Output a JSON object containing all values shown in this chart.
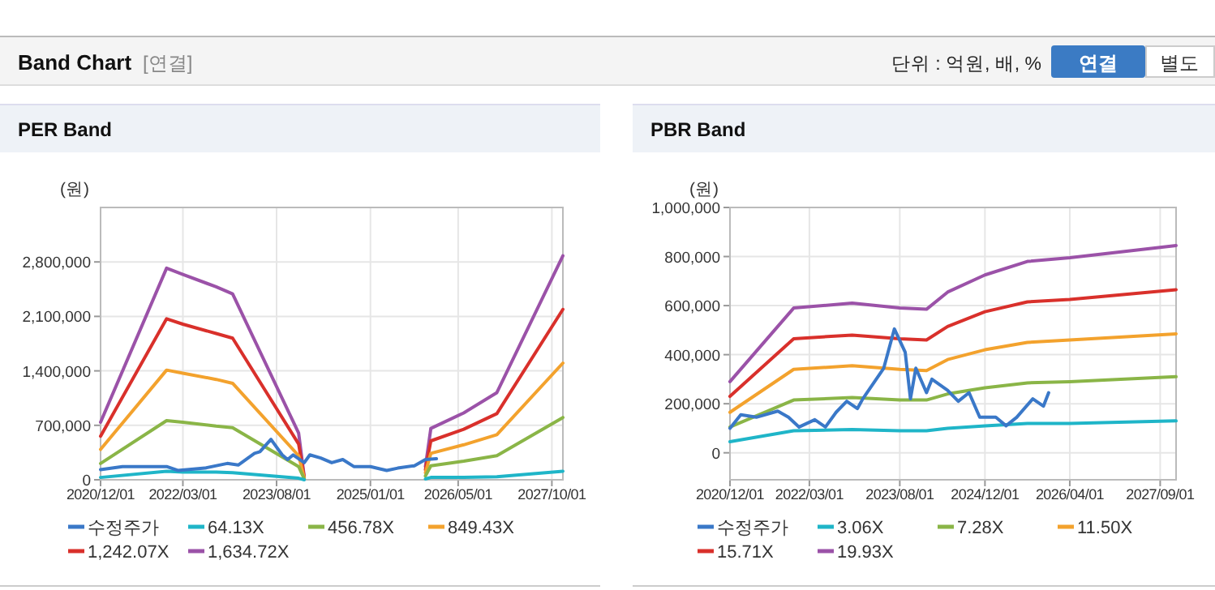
{
  "chart_data": [
    {
      "type": "other",
      "title": "Band Chart",
      "annotations": [
        "[연결]",
        "단위 : 억원, 배, %",
        "연결",
        "별도"
      ]
    },
    {
      "type": "line",
      "title": "PER Band",
      "ylabel": "(원)",
      "grid": true,
      "legend": "bottom",
      "marker": "none",
      "line_style": "solid",
      "xlim": [
        "2020-12-01",
        "2027-12-01"
      ],
      "xticks": [
        {
          "value": "2020-12-01",
          "label": "2020/12/01"
        },
        {
          "value": "2022-03-01",
          "label": "2022/03/01"
        },
        {
          "value": "2023-08-01",
          "label": "2023/08/01"
        },
        {
          "value": "2025-01-01",
          "label": "2025/01/01"
        },
        {
          "value": "2026-05-01",
          "label": "2026/05/01"
        },
        {
          "value": "2027-10-01",
          "label": "2027/10/01"
        }
      ],
      "ylim": [
        0,
        3500000
      ],
      "yticks": [
        {
          "value": 0,
          "label": "0"
        },
        {
          "value": 700000,
          "label": "700,000"
        },
        {
          "value": 1400000,
          "label": "1,400,000"
        },
        {
          "value": 2100000,
          "label": "2,100,000"
        },
        {
          "value": 2800000,
          "label": "2,800,000"
        }
      ],
      "series": [
        {
          "name": "수정주가",
          "color": "#3a78c8",
          "x": [
            "2020-12",
            "2021-04",
            "2021-12",
            "2022-02",
            "2022-07",
            "2022-11",
            "2023-01",
            "2023-04",
            "2023-05",
            "2023-07",
            "2023-09",
            "2023-10",
            "2023-11",
            "2024-01",
            "2024-02",
            "2024-04",
            "2024-06",
            "2024-08",
            "2024-10",
            "2025-01",
            "2025-04",
            "2025-06",
            "2025-09",
            "2025-11",
            "2026-01"
          ],
          "values": [
            130000,
            170000,
            170000,
            120000,
            150000,
            210000,
            190000,
            340000,
            360000,
            520000,
            320000,
            260000,
            320000,
            220000,
            320000,
            280000,
            220000,
            260000,
            170000,
            170000,
            120000,
            150000,
            180000,
            260000,
            270000
          ]
        },
        {
          "name": "64.13X",
          "color": "#1fb5c8",
          "x": [
            "2020-12",
            "2021-12",
            "2022-03",
            "2022-09",
            "2022-12",
            "2023-12",
            "2024-01",
            "2024-12",
            "2025-11",
            "2025-12",
            "2026-06",
            "2026-12",
            "2027-12"
          ],
          "values": [
            30000,
            110000,
            100000,
            100000,
            90000,
            20000,
            0,
            null,
            10000,
            30000,
            30000,
            40000,
            110000
          ]
        },
        {
          "name": "456.78X",
          "color": "#8ab547",
          "x": [
            "2020-12",
            "2021-12",
            "2022-03",
            "2022-09",
            "2022-12",
            "2023-12",
            "2024-01",
            "2024-12",
            "2025-11",
            "2025-12",
            "2026-06",
            "2026-12",
            "2027-12"
          ],
          "values": [
            210000,
            760000,
            740000,
            690000,
            670000,
            170000,
            10000,
            null,
            50000,
            180000,
            240000,
            310000,
            800000
          ]
        },
        {
          "name": "849.43X",
          "color": "#f3a22d",
          "x": [
            "2020-12",
            "2021-12",
            "2022-03",
            "2022-09",
            "2022-12",
            "2023-12",
            "2024-01",
            "2024-12",
            "2025-11",
            "2025-12",
            "2026-06",
            "2026-12",
            "2027-12"
          ],
          "values": [
            390000,
            1410000,
            1370000,
            1290000,
            1240000,
            310000,
            20000,
            null,
            90000,
            340000,
            450000,
            580000,
            1500000
          ]
        },
        {
          "name": "1,242.07X",
          "color": "#d9302b",
          "x": [
            "2020-12",
            "2021-12",
            "2022-03",
            "2022-09",
            "2022-12",
            "2023-12",
            "2024-01",
            "2024-12",
            "2025-11",
            "2025-12",
            "2026-06",
            "2026-12",
            "2027-12"
          ],
          "values": [
            560000,
            2070000,
            2000000,
            1880000,
            1820000,
            460000,
            30000,
            null,
            130000,
            500000,
            650000,
            850000,
            2190000
          ]
        },
        {
          "name": "1,634.72X",
          "color": "#9b52a8",
          "x": [
            "2020-12",
            "2021-12",
            "2022-03",
            "2022-09",
            "2022-12",
            "2023-12",
            "2024-01",
            "2024-12",
            "2025-11",
            "2025-12",
            "2026-06",
            "2026-12",
            "2027-12"
          ],
          "values": [
            740000,
            2720000,
            2640000,
            2480000,
            2390000,
            600000,
            40000,
            null,
            170000,
            660000,
            860000,
            1120000,
            2880000
          ]
        }
      ]
    },
    {
      "type": "line",
      "title": "PBR Band",
      "ylabel": "(원)",
      "grid": true,
      "legend": "bottom",
      "marker": "none",
      "line_style": "solid",
      "xlim": [
        "2020-12-01",
        "2027-12-01"
      ],
      "xticks": [
        {
          "value": "2020-12-01",
          "label": "2020/12/01"
        },
        {
          "value": "2022-03-01",
          "label": "2022/03/01"
        },
        {
          "value": "2023-08-01",
          "label": "2023/08/01"
        },
        {
          "value": "2024-12-01",
          "label": "2024/12/01"
        },
        {
          "value": "2026-04-01",
          "label": "2026/04/01"
        },
        {
          "value": "2027-09-01",
          "label": "2027/09/01"
        }
      ],
      "ylim": [
        -110000,
        1000000
      ],
      "yticks": [
        {
          "value": 0,
          "label": "0"
        },
        {
          "value": 200000,
          "label": "200,000"
        },
        {
          "value": 400000,
          "label": "400,000"
        },
        {
          "value": 600000,
          "label": "600,000"
        },
        {
          "value": 800000,
          "label": "800,000"
        },
        {
          "value": 1000000,
          "label": "1,000,000"
        }
      ],
      "series": [
        {
          "name": "수정주가",
          "color": "#3a78c8",
          "x": [
            "2020-12",
            "2021-02",
            "2021-05",
            "2021-09",
            "2021-11",
            "2022-01",
            "2022-04",
            "2022-06",
            "2022-08",
            "2022-10",
            "2022-12",
            "2023-01",
            "2023-05",
            "2023-07",
            "2023-09",
            "2023-10",
            "2023-11",
            "2024-01",
            "2024-02",
            "2024-05",
            "2024-07",
            "2024-09",
            "2024-11",
            "2025-02",
            "2025-04",
            "2025-06",
            "2025-09",
            "2025-11",
            "2025-12"
          ],
          "values": [
            100000,
            155000,
            145000,
            170000,
            145000,
            105000,
            135000,
            105000,
            165000,
            210000,
            180000,
            220000,
            345000,
            505000,
            410000,
            220000,
            345000,
            245000,
            300000,
            255000,
            210000,
            245000,
            145000,
            145000,
            110000,
            145000,
            220000,
            190000,
            245000
          ]
        },
        {
          "name": "3.06X",
          "color": "#1fb5c8",
          "x": [
            "2020-12",
            "2021-12",
            "2022-11",
            "2023-08",
            "2024-01",
            "2024-05",
            "2024-12",
            "2025-08",
            "2026-04",
            "2027-12"
          ],
          "values": [
            45000,
            90000,
            95000,
            90000,
            90000,
            100000,
            110000,
            120000,
            120000,
            130000
          ]
        },
        {
          "name": "7.28X",
          "color": "#8ab547",
          "x": [
            "2020-12",
            "2021-12",
            "2022-11",
            "2023-08",
            "2024-01",
            "2024-05",
            "2024-12",
            "2025-08",
            "2026-04",
            "2027-12"
          ],
          "values": [
            105000,
            215000,
            225000,
            215000,
            215000,
            240000,
            265000,
            285000,
            290000,
            310000
          ]
        },
        {
          "name": "11.50X",
          "color": "#f3a22d",
          "x": [
            "2020-12",
            "2021-12",
            "2022-11",
            "2023-08",
            "2024-01",
            "2024-05",
            "2024-12",
            "2025-08",
            "2026-04",
            "2027-12"
          ],
          "values": [
            165000,
            340000,
            355000,
            340000,
            335000,
            380000,
            420000,
            450000,
            460000,
            485000
          ]
        },
        {
          "name": "15.71X",
          "color": "#d9302b",
          "x": [
            "2020-12",
            "2021-12",
            "2022-11",
            "2023-08",
            "2024-01",
            "2024-05",
            "2024-12",
            "2025-08",
            "2026-04",
            "2027-12"
          ],
          "values": [
            230000,
            465000,
            480000,
            465000,
            460000,
            515000,
            575000,
            615000,
            625000,
            665000
          ]
        },
        {
          "name": "19.93X",
          "color": "#9b52a8",
          "x": [
            "2020-12",
            "2021-12",
            "2022-11",
            "2023-08",
            "2024-01",
            "2024-05",
            "2024-12",
            "2025-08",
            "2026-04",
            "2027-12"
          ],
          "values": [
            290000,
            590000,
            610000,
            590000,
            585000,
            655000,
            725000,
            780000,
            795000,
            845000
          ]
        }
      ]
    }
  ]
}
